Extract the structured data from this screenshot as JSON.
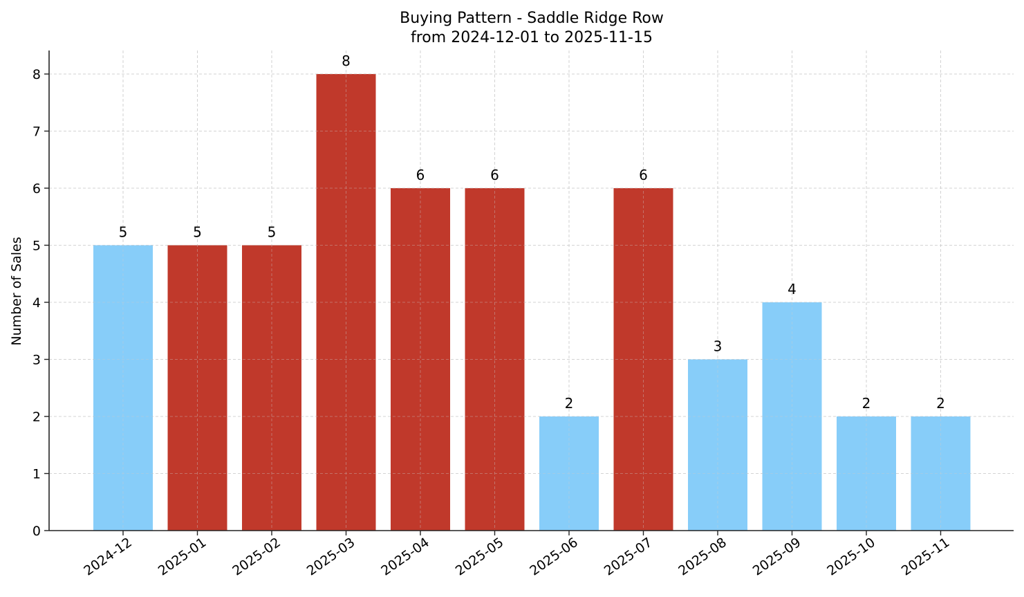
{
  "chart_data": {
    "type": "bar",
    "title": "Buying Pattern - Saddle Ridge Row",
    "subtitle": "from 2024-12-01 to 2025-11-15",
    "xlabel": "",
    "ylabel": "Number of Sales",
    "categories": [
      "2024-12",
      "2025-01",
      "2025-02",
      "2025-03",
      "2025-04",
      "2025-05",
      "2025-06",
      "2025-07",
      "2025-08",
      "2025-09",
      "2025-10",
      "2025-11"
    ],
    "values": [
      5,
      5,
      5,
      8,
      6,
      6,
      2,
      6,
      3,
      4,
      2,
      2
    ],
    "bar_colors": [
      "#87cdf9",
      "#c0392b",
      "#c0392b",
      "#c0392b",
      "#c0392b",
      "#c0392b",
      "#87cdf9",
      "#c0392b",
      "#87cdf9",
      "#87cdf9",
      "#87cdf9",
      "#87cdf9"
    ],
    "highlight_color": "#c0392b",
    "base_color": "#87cdf9",
    "ylim": [
      0,
      8.4
    ],
    "yticks": [
      0,
      1,
      2,
      3,
      4,
      5,
      6,
      7,
      8
    ],
    "grid": true,
    "data_labels": true,
    "legend": null
  }
}
